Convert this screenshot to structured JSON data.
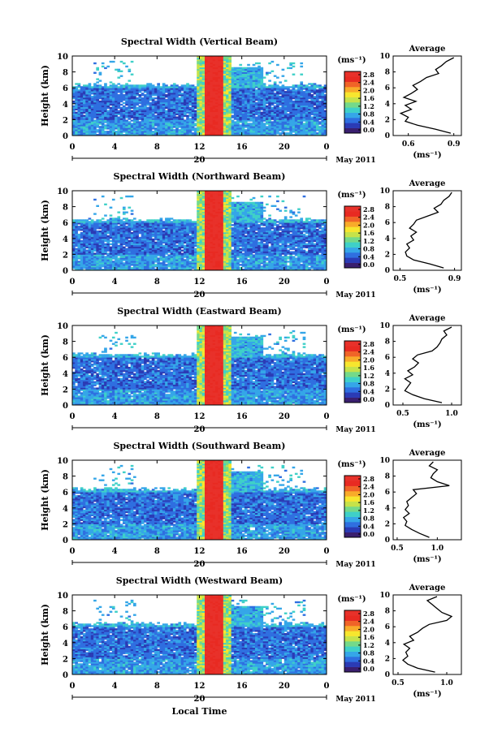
{
  "figure": {
    "date_label": "20",
    "month_year_label": "May 2011",
    "xlabel": "Local Time",
    "ylabel": "Height (km)",
    "colorbar_unit": "(ms⁻¹)",
    "average_title": "Average",
    "average_xlabel": "(ms⁻¹)"
  },
  "colors": {
    "colormap": [
      "#3a1f6f",
      "#2b3bb5",
      "#2f6fe0",
      "#35a6e8",
      "#3fd0c8",
      "#74d98a",
      "#c6e24a",
      "#f7e62e",
      "#f8ab2a",
      "#f06428",
      "#e82a22",
      "#e8312a"
    ]
  },
  "chart_data": [
    {
      "type": "heatmap",
      "title": "Spectral Width (Vertical Beam)",
      "x_ticks": [
        "0",
        "4",
        "8",
        "12",
        "16",
        "20",
        "0"
      ],
      "y_ticks": [
        "0",
        "2",
        "4",
        "6",
        "8",
        "10"
      ],
      "xlim": [
        0,
        24
      ],
      "ylim": [
        0,
        10
      ],
      "colorbar_ticks": [
        "0.0",
        "0.4",
        "0.8",
        "1.2",
        "1.6",
        "2.0",
        "2.4",
        "2.8"
      ],
      "colorbar_range": [
        0.0,
        2.8
      ],
      "average_profile": {
        "x_ticks": [
          "0.6",
          "0.9"
        ],
        "xlim": [
          0.5,
          0.95
        ],
        "heights": [
          0.3,
          0.8,
          1.3,
          1.8,
          2.3,
          2.8,
          3.3,
          3.8,
          4.3,
          4.8,
          5.3,
          5.8,
          6.3,
          6.8,
          7.3,
          7.8,
          8.3,
          8.8,
          9.3,
          9.8
        ],
        "values": [
          0.88,
          0.78,
          0.66,
          0.58,
          0.6,
          0.55,
          0.62,
          0.58,
          0.65,
          0.57,
          0.62,
          0.66,
          0.63,
          0.68,
          0.72,
          0.8,
          0.78,
          0.82,
          0.85,
          0.9
        ]
      }
    },
    {
      "type": "heatmap",
      "title": "Spectral Width (Northward Beam)",
      "x_ticks": [
        "0",
        "4",
        "8",
        "12",
        "16",
        "20",
        "0"
      ],
      "y_ticks": [
        "0",
        "2",
        "4",
        "6",
        "8",
        "10"
      ],
      "xlim": [
        0,
        24
      ],
      "ylim": [
        0,
        10
      ],
      "colorbar_ticks": [
        "0.0",
        "0.4",
        "0.8",
        "1.2",
        "1.6",
        "2.0",
        "2.4",
        "2.8"
      ],
      "colorbar_range": [
        0.0,
        2.8
      ],
      "average_profile": {
        "x_ticks": [
          "0.5",
          "0.9"
        ],
        "xlim": [
          0.45,
          0.95
        ],
        "heights": [
          0.3,
          0.8,
          1.3,
          1.8,
          2.3,
          2.8,
          3.3,
          3.8,
          4.3,
          4.8,
          5.3,
          5.8,
          6.3,
          6.8,
          7.3,
          7.8,
          8.3,
          8.8,
          9.3,
          9.8
        ],
        "values": [
          0.82,
          0.72,
          0.6,
          0.55,
          0.54,
          0.57,
          0.55,
          0.6,
          0.58,
          0.62,
          0.57,
          0.6,
          0.62,
          0.7,
          0.78,
          0.75,
          0.8,
          0.82,
          0.86,
          0.88
        ]
      }
    },
    {
      "type": "heatmap",
      "title": "Spectral Width (Eastward Beam)",
      "x_ticks": [
        "0",
        "4",
        "8",
        "12",
        "16",
        "20",
        "0"
      ],
      "y_ticks": [
        "0",
        "2",
        "4",
        "6",
        "8",
        "10"
      ],
      "xlim": [
        0,
        24
      ],
      "ylim": [
        0,
        10
      ],
      "colorbar_ticks": [
        "0.0",
        "0.4",
        "0.8",
        "1.2",
        "1.6",
        "2.0",
        "2.4",
        "2.8"
      ],
      "colorbar_range": [
        0.0,
        2.8
      ],
      "average_profile": {
        "x_ticks": [
          "0.5",
          "1.0"
        ],
        "xlim": [
          0.4,
          1.1
        ],
        "heights": [
          0.3,
          0.8,
          1.3,
          1.8,
          2.3,
          2.8,
          3.3,
          3.8,
          4.3,
          4.8,
          5.3,
          5.8,
          6.3,
          6.8,
          7.3,
          7.8,
          8.3,
          8.8,
          9.3,
          9.8
        ],
        "values": [
          0.9,
          0.72,
          0.6,
          0.52,
          0.55,
          0.58,
          0.52,
          0.6,
          0.55,
          0.62,
          0.66,
          0.6,
          0.65,
          0.8,
          0.85,
          0.88,
          0.9,
          0.95,
          0.92,
          1.0
        ]
      }
    },
    {
      "type": "heatmap",
      "title": "Spectral Width (Southward Beam)",
      "x_ticks": [
        "0",
        "4",
        "8",
        "12",
        "16",
        "20",
        "0"
      ],
      "y_ticks": [
        "0",
        "2",
        "4",
        "6",
        "8",
        "10"
      ],
      "xlim": [
        0,
        24
      ],
      "ylim": [
        0,
        10
      ],
      "colorbar_ticks": [
        "0.0",
        "0.4",
        "0.8",
        "1.2",
        "1.6",
        "2.0",
        "2.4",
        "2.8"
      ],
      "colorbar_range": [
        0.0,
        2.8
      ],
      "average_profile": {
        "x_ticks": [
          "0.5",
          "1.0"
        ],
        "xlim": [
          0.45,
          1.3
        ],
        "heights": [
          0.3,
          0.8,
          1.3,
          1.8,
          2.3,
          2.8,
          3.3,
          3.8,
          4.3,
          4.8,
          5.3,
          5.8,
          6.3,
          6.8,
          7.3,
          7.8,
          8.3,
          8.8,
          9.3,
          9.8
        ],
        "values": [
          0.9,
          0.78,
          0.68,
          0.6,
          0.62,
          0.58,
          0.65,
          0.6,
          0.64,
          0.62,
          0.68,
          0.74,
          0.7,
          1.15,
          1.0,
          0.92,
          0.95,
          1.0,
          0.9,
          0.95
        ]
      }
    },
    {
      "type": "heatmap",
      "title": "Spectral Width (Westward Beam)",
      "x_ticks": [
        "0",
        "4",
        "8",
        "12",
        "16",
        "20",
        "0"
      ],
      "y_ticks": [
        "0",
        "2",
        "4",
        "6",
        "8",
        "10"
      ],
      "xlim": [
        0,
        24
      ],
      "ylim": [
        0,
        10
      ],
      "colorbar_ticks": [
        "0.0",
        "0.4",
        "0.8",
        "1.2",
        "1.6",
        "2.0",
        "2.4",
        "2.8"
      ],
      "colorbar_range": [
        0.0,
        2.8
      ],
      "average_profile": {
        "x_ticks": [
          "0.5",
          "1.0"
        ],
        "xlim": [
          0.45,
          1.15
        ],
        "heights": [
          0.3,
          0.8,
          1.3,
          1.8,
          2.3,
          2.8,
          3.3,
          3.8,
          4.3,
          4.8,
          5.3,
          5.8,
          6.3,
          6.8,
          7.3,
          7.8,
          8.3,
          8.8,
          9.3,
          9.8
        ],
        "values": [
          0.88,
          0.7,
          0.6,
          0.55,
          0.6,
          0.58,
          0.62,
          0.56,
          0.66,
          0.62,
          0.7,
          0.75,
          0.82,
          1.0,
          1.05,
          0.95,
          0.9,
          0.85,
          0.8,
          0.9
        ]
      }
    }
  ]
}
